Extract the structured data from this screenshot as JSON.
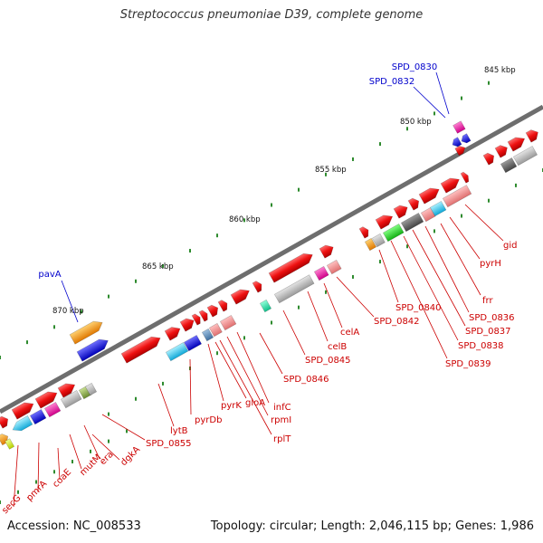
{
  "title": "Streptococcus pneumoniae D39, complete genome",
  "footer": {
    "accession": "Accession: NC_008533",
    "topology": "Topology: circular; Length: 2,046,115 bp; Genes: 1,986"
  },
  "colors": {
    "backbone": "#808080",
    "cds_red": "#ee1111",
    "label_red": "#cc0000",
    "label_blue": "#0000cc",
    "tick_green": "#2e8b2e"
  },
  "scale_labels": [
    "845 kbp",
    "850 kbp",
    "855 kbp",
    "860 kbp",
    "865 kbp",
    "870 kbp"
  ],
  "blue_labels": [
    "SPD_0830",
    "SPD_0832",
    "pavA"
  ],
  "red_labels": [
    "gid",
    "pyrH",
    "frr",
    "SPD_0836",
    "SPD_0837",
    "SPD_0838",
    "SPD_0839",
    "SPD_0840",
    "SPD_0842",
    "celA",
    "celB",
    "SPD_0845",
    "SPD_0846",
    "infC",
    "rpmI",
    "rplT",
    "gloA",
    "pyrK",
    "pyrDb",
    "lytB",
    "SPD_0855",
    "dgkA",
    "era",
    "mutM",
    "coaE",
    "pmrA",
    "secG"
  ]
}
